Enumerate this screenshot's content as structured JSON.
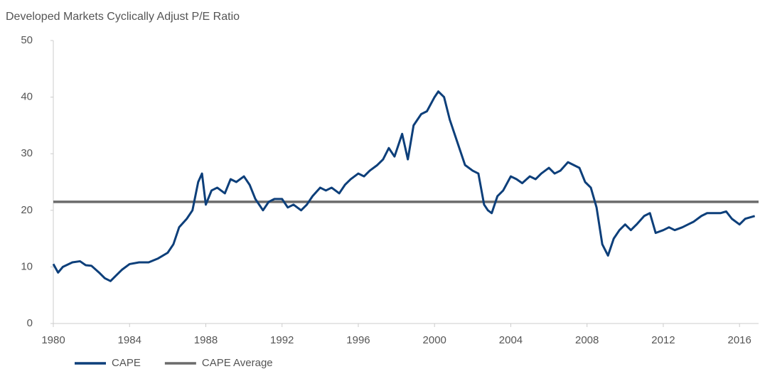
{
  "chart_data": {
    "type": "line",
    "title": "Developed Markets Cyclically Adjust P/E Ratio",
    "xlim": [
      1980,
      2017
    ],
    "xticks": [
      1980,
      1984,
      1988,
      1992,
      1996,
      2000,
      2004,
      2008,
      2012,
      2016
    ],
    "ylim": [
      0,
      50
    ],
    "yticks": [
      0,
      10,
      20,
      30,
      40,
      50
    ],
    "grid": false,
    "legend": "bottom",
    "series": [
      {
        "name": "CAPE",
        "color": "#0d3f7a",
        "x": [
          1980.0,
          1980.25,
          1980.5,
          1981.0,
          1981.4,
          1981.7,
          1982.0,
          1982.4,
          1982.7,
          1983.0,
          1983.3,
          1983.6,
          1984.0,
          1984.5,
          1985.0,
          1985.5,
          1986.0,
          1986.3,
          1986.6,
          1987.0,
          1987.3,
          1987.6,
          1987.8,
          1988.0,
          1988.3,
          1988.6,
          1989.0,
          1989.3,
          1989.6,
          1990.0,
          1990.3,
          1990.6,
          1991.0,
          1991.3,
          1991.6,
          1992.0,
          1992.3,
          1992.6,
          1993.0,
          1993.3,
          1993.6,
          1994.0,
          1994.3,
          1994.6,
          1995.0,
          1995.3,
          1995.6,
          1996.0,
          1996.3,
          1996.6,
          1997.0,
          1997.3,
          1997.6,
          1997.9,
          1998.3,
          1998.6,
          1998.9,
          1999.3,
          1999.6,
          2000.0,
          2000.2,
          2000.5,
          2000.8,
          2001.0,
          2001.3,
          2001.6,
          2002.0,
          2002.3,
          2002.6,
          2002.8,
          2003.0,
          2003.3,
          2003.6,
          2004.0,
          2004.3,
          2004.6,
          2005.0,
          2005.3,
          2005.6,
          2006.0,
          2006.3,
          2006.6,
          2007.0,
          2007.3,
          2007.6,
          2007.9,
          2008.2,
          2008.5,
          2008.8,
          2009.1,
          2009.4,
          2009.7,
          2010.0,
          2010.3,
          2010.6,
          2011.0,
          2011.3,
          2011.6,
          2012.0,
          2012.3,
          2012.6,
          2013.0,
          2013.3,
          2013.6,
          2014.0,
          2014.3,
          2014.6,
          2015.0,
          2015.3,
          2015.6,
          2016.0,
          2016.3,
          2016.8
        ],
        "values": [
          10.5,
          9.0,
          10.0,
          10.8,
          11.0,
          10.3,
          10.2,
          9.0,
          8.0,
          7.5,
          8.5,
          9.5,
          10.5,
          10.8,
          10.8,
          11.5,
          12.5,
          14.0,
          17.0,
          18.5,
          20.0,
          25.0,
          26.5,
          21.0,
          23.5,
          24.0,
          23.0,
          25.5,
          25.0,
          26.0,
          24.5,
          22.0,
          20.0,
          21.5,
          22.0,
          22.0,
          20.5,
          21.0,
          20.0,
          21.0,
          22.5,
          24.0,
          23.5,
          24.0,
          23.0,
          24.5,
          25.5,
          26.5,
          26.0,
          27.0,
          28.0,
          29.0,
          31.0,
          29.5,
          33.5,
          29.0,
          35.0,
          37.0,
          37.5,
          40.0,
          41.0,
          40.0,
          36.0,
          34.0,
          31.0,
          28.0,
          27.0,
          26.5,
          21.0,
          20.0,
          19.5,
          22.5,
          23.5,
          26.0,
          25.5,
          24.8,
          26.0,
          25.5,
          26.5,
          27.5,
          26.5,
          27.0,
          28.5,
          28.0,
          27.5,
          25.0,
          24.0,
          20.5,
          14.0,
          12.0,
          15.0,
          16.5,
          17.5,
          16.5,
          17.5,
          19.0,
          19.5,
          16.0,
          16.5,
          17.0,
          16.5,
          17.0,
          17.5,
          18.0,
          19.0,
          19.5,
          19.5,
          19.5,
          19.8,
          18.5,
          17.5,
          18.5,
          19.0
        ]
      },
      {
        "name": "CAPE Average",
        "color": "#6b6b6b",
        "x": [
          1980,
          2017
        ],
        "values": [
          21.5,
          21.5
        ]
      }
    ]
  }
}
